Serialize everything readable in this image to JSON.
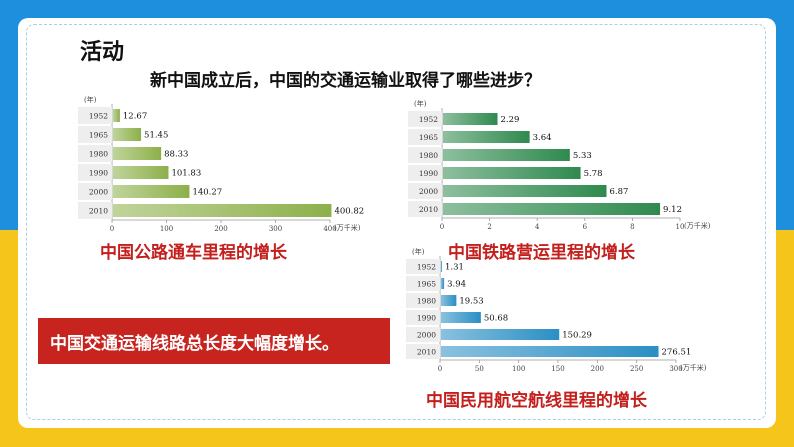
{
  "activity_label": "活动",
  "question": "新中国成立后，中国的交通运输业取得了哪些进步？",
  "banner_text": "中国交通运输线路总长度大幅度增长。",
  "chart_data": [
    {
      "type": "bar",
      "orientation": "horizontal",
      "caption": "中国公路通车里程的增长",
      "y_unit": "(年)",
      "x_unit": "(万千米)",
      "categories": [
        "1952",
        "1965",
        "1980",
        "1990",
        "2000",
        "2010"
      ],
      "values": [
        12.67,
        51.45,
        88.33,
        101.83,
        140.27,
        400.82
      ],
      "value_labels": [
        "12.67",
        "51.45",
        "88.33",
        "101.83",
        "140.27",
        "400.82"
      ],
      "xlim": [
        0,
        400
      ],
      "xticks": [
        "0",
        "100",
        "200",
        "300",
        "400"
      ],
      "bar_color": "#8db04a"
    },
    {
      "type": "bar",
      "orientation": "horizontal",
      "caption": "中国铁路营运里程的增长",
      "y_unit": "(年)",
      "x_unit": "(万千米)",
      "categories": [
        "1952",
        "1965",
        "1980",
        "1990",
        "2000",
        "2010"
      ],
      "values": [
        2.29,
        3.64,
        5.33,
        5.78,
        6.87,
        9.12
      ],
      "value_labels": [
        "2.29",
        "3.64",
        "5.33",
        "5.78",
        "6.87",
        "9.12"
      ],
      "xlim": [
        0,
        10
      ],
      "xticks": [
        "0",
        "2",
        "4",
        "6",
        "8",
        "10"
      ],
      "bar_color": "#2f8a4e"
    },
    {
      "type": "bar",
      "orientation": "horizontal",
      "caption": "中国民用航空航线里程的增长",
      "y_unit": "(年)",
      "x_unit": "(万千米)",
      "categories": [
        "1952",
        "1965",
        "1980",
        "1990",
        "2000",
        "2010"
      ],
      "values": [
        1.31,
        3.94,
        19.53,
        50.68,
        150.29,
        276.51
      ],
      "value_labels": [
        "1.31",
        "3.94",
        "19.53",
        "50.68",
        "150.29",
        "276.51"
      ],
      "xlim": [
        0,
        300
      ],
      "xticks": [
        "0",
        "50",
        "100",
        "150",
        "200",
        "250",
        "300"
      ],
      "bar_color": "#2a8fc4"
    }
  ]
}
